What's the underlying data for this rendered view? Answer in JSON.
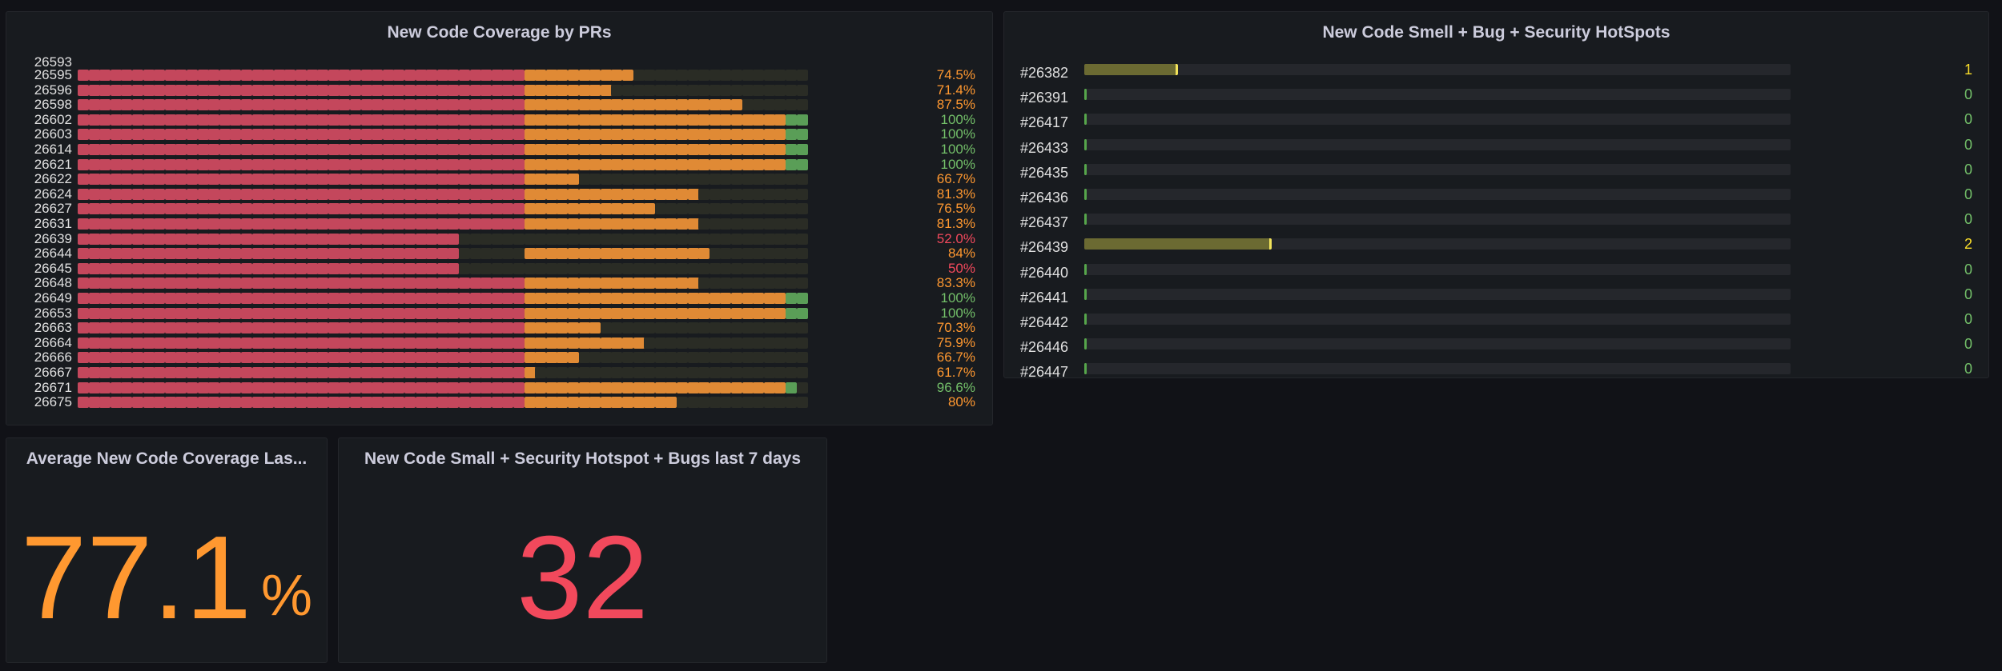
{
  "colors": {
    "red": "#f2495c",
    "orange": "#ff9830",
    "green": "#73bf69",
    "yellow": "#fade2a"
  },
  "coverage_panel": {
    "title": "New Code Coverage by PRs",
    "top_partial_label": "26593",
    "rows": [
      {
        "pr": "26595",
        "pct": "74.5%",
        "red": 41,
        "orange": 10,
        "green": 0,
        "color": "orange"
      },
      {
        "pr": "26596",
        "pct": "71.4%",
        "red": 41,
        "orange": 8,
        "green": 0,
        "color": "orange"
      },
      {
        "pr": "26598",
        "pct": "87.5%",
        "red": 41,
        "orange": 20,
        "green": 0,
        "color": "orange"
      },
      {
        "pr": "26602",
        "pct": "100%",
        "red": 41,
        "orange": 24,
        "green": 2,
        "color": "green"
      },
      {
        "pr": "26603",
        "pct": "100%",
        "red": 41,
        "orange": 24,
        "green": 2,
        "color": "green"
      },
      {
        "pr": "26614",
        "pct": "100%",
        "red": 41,
        "orange": 24,
        "green": 2,
        "color": "green"
      },
      {
        "pr": "26621",
        "pct": "100%",
        "red": 41,
        "orange": 24,
        "green": 2,
        "color": "green"
      },
      {
        "pr": "26622",
        "pct": "66.7%",
        "red": 41,
        "orange": 5,
        "green": 0,
        "color": "orange"
      },
      {
        "pr": "26624",
        "pct": "81.3%",
        "red": 41,
        "orange": 16,
        "green": 0,
        "color": "orange"
      },
      {
        "pr": "26627",
        "pct": "76.5%",
        "red": 41,
        "orange": 12,
        "green": 0,
        "color": "orange"
      },
      {
        "pr": "26631",
        "pct": "81.3%",
        "red": 41,
        "orange": 16,
        "green": 0,
        "color": "orange"
      },
      {
        "pr": "26639",
        "pct": "52.0%",
        "red": 35,
        "orange": 0,
        "green": 0,
        "color": "red"
      },
      {
        "pr": "26644",
        "pct": "84%",
        "red": 35,
        "orange": 0,
        "green": 0,
        "color": "orange",
        "extra_orange_from": 41,
        "extra_orange_to": 58
      },
      {
        "pr": "26645",
        "pct": "50%",
        "red": 35,
        "orange": 0,
        "green": 0,
        "color": "red"
      },
      {
        "pr": "26648",
        "pct": "83.3%",
        "red": 41,
        "orange": 16,
        "green": 0,
        "color": "orange"
      },
      {
        "pr": "26649",
        "pct": "100%",
        "red": 41,
        "orange": 24,
        "green": 2,
        "color": "green"
      },
      {
        "pr": "26653",
        "pct": "100%",
        "red": 41,
        "orange": 24,
        "green": 2,
        "color": "green"
      },
      {
        "pr": "26663",
        "pct": "70.3%",
        "red": 41,
        "orange": 7,
        "green": 0,
        "color": "orange"
      },
      {
        "pr": "26664",
        "pct": "75.9%",
        "red": 41,
        "orange": 11,
        "green": 0,
        "color": "orange"
      },
      {
        "pr": "26666",
        "pct": "66.7%",
        "red": 41,
        "orange": 5,
        "green": 0,
        "color": "orange"
      },
      {
        "pr": "26667",
        "pct": "61.7%",
        "red": 41,
        "orange": 1,
        "green": 0,
        "color": "orange"
      },
      {
        "pr": "26671",
        "pct": "96.6%",
        "red": 41,
        "orange": 24,
        "green": 1,
        "color": "green"
      },
      {
        "pr": "26675",
        "pct": "80%",
        "red": 41,
        "orange": 14,
        "green": 0,
        "color": "orange"
      }
    ]
  },
  "hotspot_panel": {
    "title": "New Code Smell + Bug + Security HotSpots",
    "max": 8,
    "rows": [
      {
        "pr": "#26382",
        "value": 1
      },
      {
        "pr": "#26391",
        "value": 0
      },
      {
        "pr": "#26417",
        "value": 0
      },
      {
        "pr": "#26433",
        "value": 0
      },
      {
        "pr": "#26435",
        "value": 0
      },
      {
        "pr": "#26436",
        "value": 0
      },
      {
        "pr": "#26437",
        "value": 0
      },
      {
        "pr": "#26439",
        "value": 2
      },
      {
        "pr": "#26440",
        "value": 0
      },
      {
        "pr": "#26441",
        "value": 0
      },
      {
        "pr": "#26442",
        "value": 0
      },
      {
        "pr": "#26446",
        "value": 0
      },
      {
        "pr": "#26447",
        "value": 0
      }
    ]
  },
  "avg_panel": {
    "title": "Average New Code Coverage Las...",
    "value": "77.1",
    "unit": "%"
  },
  "smell_panel": {
    "title": "New Code Small + Security Hotspot + Bugs last 7 days",
    "value": "32"
  }
}
